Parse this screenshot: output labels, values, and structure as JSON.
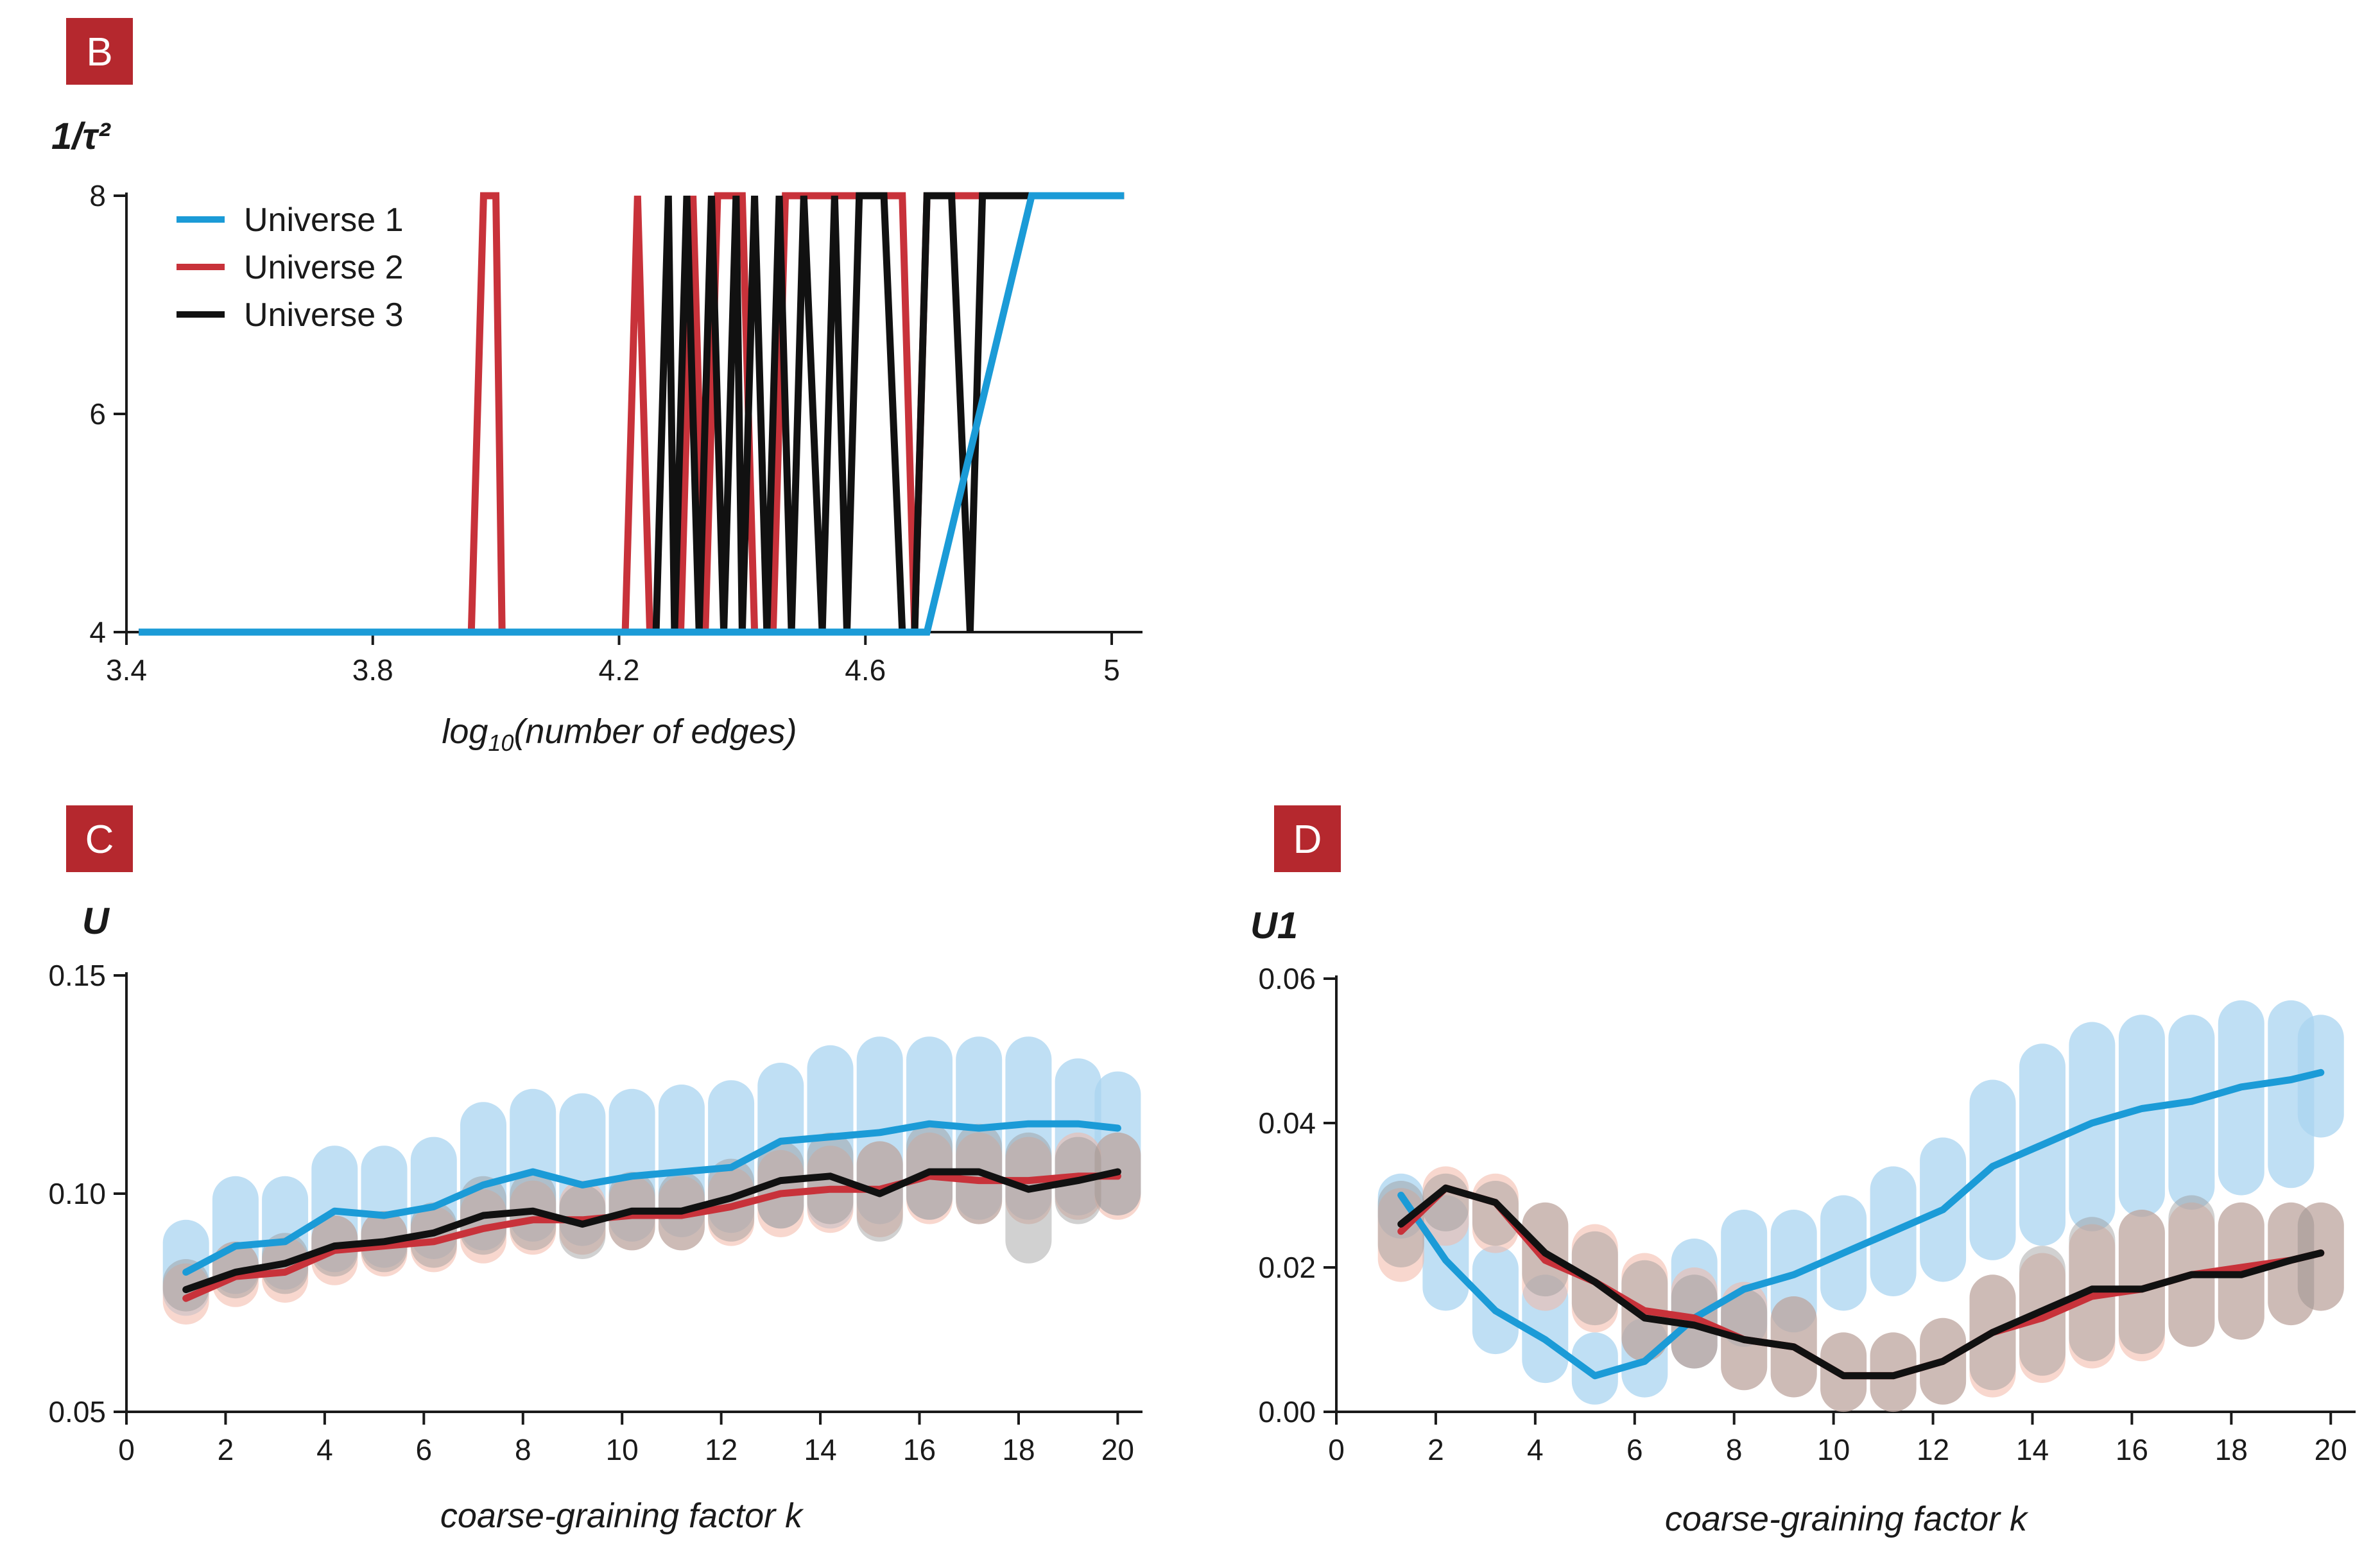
{
  "colors": {
    "universe1": "#1b9bd7",
    "universe2": "#c8323a",
    "universe3": "#111111",
    "badge": "#b5282e",
    "band_universe1": "#a9d4f0",
    "band_universe2": "#f3b7a6",
    "band_universe3": "#9a9a9a"
  },
  "chart_data": [
    {
      "type": "line",
      "panel": "B",
      "ylabel": "1/τ²",
      "xlabel_prefix": "log",
      "xlabel_sub": "10",
      "xlabel_suffix": "(number of edges)",
      "xlim": [
        3.4,
        5.05
      ],
      "ylim": [
        4,
        8
      ],
      "xticks": [
        "3.4",
        "3.8",
        "4.2",
        "4.6",
        "5"
      ],
      "yticks": [
        "4",
        "6",
        "8"
      ],
      "legend_position": "top-left",
      "series": [
        {
          "name": "Universe 1",
          "x": [
            3.42,
            4.7,
            4.87,
            5.02
          ],
          "y": [
            4,
            4,
            8,
            8
          ]
        },
        {
          "name": "Universe 2",
          "x": [
            3.42,
            3.96,
            3.98,
            4.0,
            4.01,
            4.21,
            4.23,
            4.25,
            4.3,
            4.32,
            4.34,
            4.36,
            4.4,
            4.42,
            4.45,
            4.47,
            4.52,
            4.66,
            4.68,
            4.7,
            4.75,
            5.02
          ],
          "y": [
            4,
            4,
            8,
            8,
            4,
            4,
            8,
            4,
            4,
            8,
            4,
            8,
            8,
            4,
            4,
            8,
            8,
            8,
            4,
            8,
            8,
            8
          ]
        },
        {
          "name": "Universe 3",
          "x": [
            3.42,
            4.26,
            4.28,
            4.29,
            4.31,
            4.33,
            4.35,
            4.37,
            4.39,
            4.4,
            4.42,
            4.44,
            4.46,
            4.48,
            4.5,
            4.53,
            4.55,
            4.57,
            4.59,
            4.6,
            4.63,
            4.66,
            4.68,
            4.7,
            4.72,
            4.74,
            4.77,
            4.79,
            4.82,
            4.85,
            5.02
          ],
          "y": [
            4,
            4,
            8,
            4,
            8,
            4,
            8,
            4,
            8,
            4,
            8,
            4,
            8,
            4,
            8,
            4,
            8,
            4,
            8,
            8,
            8,
            4,
            4,
            8,
            8,
            8,
            4,
            8,
            8,
            8,
            8
          ]
        }
      ]
    },
    {
      "type": "line",
      "panel": "C",
      "ylabel": "U",
      "xlabel": "coarse-graining factor k",
      "xlim": [
        0,
        20.5
      ],
      "ylim": [
        0.05,
        0.15
      ],
      "xticks": [
        "0",
        "2",
        "4",
        "6",
        "8",
        "10",
        "12",
        "14",
        "16",
        "18",
        "20"
      ],
      "yticks": [
        "0.05",
        "0.10",
        "0.15"
      ],
      "x": [
        1.2,
        2.2,
        3.2,
        4.2,
        5.2,
        6.2,
        7.2,
        8.2,
        9.2,
        10.2,
        11.2,
        12.2,
        13.2,
        14.2,
        15.2,
        16.2,
        17.2,
        18.2,
        19.2,
        20.0
      ],
      "series": [
        {
          "name": "Universe 1",
          "values": [
            0.082,
            0.088,
            0.089,
            0.096,
            0.095,
            0.097,
            0.102,
            0.105,
            0.102,
            0.104,
            0.105,
            0.106,
            0.112,
            0.113,
            0.114,
            0.116,
            0.115,
            0.116,
            0.116,
            0.115
          ],
          "band_low": [
            0.072,
            0.077,
            0.078,
            0.082,
            0.083,
            0.085,
            0.087,
            0.089,
            0.088,
            0.089,
            0.09,
            0.091,
            0.092,
            0.092,
            0.093,
            0.094,
            0.094,
            0.094,
            0.095,
            0.095
          ],
          "band_high": [
            0.094,
            0.104,
            0.104,
            0.111,
            0.111,
            0.113,
            0.121,
            0.124,
            0.123,
            0.124,
            0.125,
            0.126,
            0.13,
            0.134,
            0.136,
            0.136,
            0.136,
            0.136,
            0.131,
            0.128
          ]
        },
        {
          "name": "Universe 2",
          "values": [
            0.076,
            0.081,
            0.082,
            0.087,
            0.088,
            0.089,
            0.092,
            0.094,
            0.094,
            0.095,
            0.095,
            0.097,
            0.1,
            0.101,
            0.101,
            0.104,
            0.103,
            0.103,
            0.104,
            0.104
          ],
          "band_low": [
            0.07,
            0.074,
            0.075,
            0.079,
            0.081,
            0.082,
            0.084,
            0.086,
            0.086,
            0.087,
            0.087,
            0.088,
            0.09,
            0.091,
            0.09,
            0.093,
            0.093,
            0.093,
            0.094,
            0.094
          ],
          "band_high": [
            0.084,
            0.089,
            0.09,
            0.095,
            0.096,
            0.097,
            0.101,
            0.103,
            0.103,
            0.104,
            0.104,
            0.106,
            0.11,
            0.111,
            0.112,
            0.114,
            0.114,
            0.113,
            0.114,
            0.114
          ]
        },
        {
          "name": "Universe 3",
          "values": [
            0.078,
            0.082,
            0.084,
            0.088,
            0.089,
            0.091,
            0.095,
            0.096,
            0.093,
            0.096,
            0.096,
            0.099,
            0.103,
            0.104,
            0.1,
            0.105,
            0.105,
            0.101,
            0.103,
            0.105
          ],
          "band_low": [
            0.073,
            0.076,
            0.077,
            0.081,
            0.082,
            0.083,
            0.086,
            0.087,
            0.085,
            0.087,
            0.087,
            0.089,
            0.092,
            0.093,
            0.089,
            0.094,
            0.093,
            0.084,
            0.093,
            0.095
          ],
          "band_high": [
            0.085,
            0.089,
            0.091,
            0.095,
            0.096,
            0.098,
            0.104,
            0.105,
            0.102,
            0.105,
            0.105,
            0.108,
            0.112,
            0.114,
            0.112,
            0.116,
            0.116,
            0.114,
            0.113,
            0.114
          ]
        }
      ]
    },
    {
      "type": "line",
      "panel": "D",
      "ylabel": "U1",
      "xlabel": "coarse-graining factor k",
      "xlim": [
        0,
        20.5
      ],
      "ylim": [
        0.0,
        0.06
      ],
      "xticks": [
        "0",
        "2",
        "4",
        "6",
        "8",
        "10",
        "12",
        "14",
        "16",
        "18",
        "20"
      ],
      "yticks": [
        "0.00",
        "0.02",
        "0.04",
        "0.06"
      ],
      "x": [
        1.3,
        2.2,
        3.2,
        4.2,
        5.2,
        6.2,
        7.2,
        8.2,
        9.2,
        10.2,
        11.2,
        12.2,
        13.2,
        14.2,
        15.2,
        16.2,
        17.2,
        18.2,
        19.2,
        19.8
      ],
      "series": [
        {
          "name": "Universe 1",
          "values": [
            0.03,
            0.021,
            0.014,
            0.01,
            0.005,
            0.007,
            0.013,
            0.017,
            0.019,
            0.022,
            0.025,
            0.028,
            0.034,
            0.037,
            0.04,
            0.042,
            0.043,
            0.045,
            0.046,
            0.047
          ],
          "band_low": [
            0.024,
            0.014,
            0.008,
            0.004,
            0.001,
            0.002,
            0.006,
            0.009,
            0.011,
            0.014,
            0.016,
            0.018,
            0.021,
            0.023,
            0.025,
            0.027,
            0.028,
            0.03,
            0.031,
            0.038
          ],
          "band_high": [
            0.033,
            0.03,
            0.023,
            0.019,
            0.011,
            0.013,
            0.024,
            0.028,
            0.028,
            0.03,
            0.034,
            0.038,
            0.046,
            0.051,
            0.054,
            0.055,
            0.055,
            0.057,
            0.057,
            0.055
          ]
        },
        {
          "name": "Universe 2",
          "values": [
            0.025,
            0.031,
            0.029,
            0.021,
            0.018,
            0.014,
            0.013,
            0.01,
            0.009,
            0.005,
            0.005,
            0.007,
            0.011,
            0.013,
            0.016,
            0.017,
            0.019,
            0.02,
            0.021,
            0.022
          ],
          "band_low": [
            0.018,
            0.023,
            0.022,
            0.014,
            0.011,
            0.007,
            0.006,
            0.003,
            0.002,
            0.0,
            0.0,
            0.001,
            0.002,
            0.004,
            0.006,
            0.007,
            0.009,
            0.01,
            0.012,
            0.014
          ],
          "band_high": [
            0.031,
            0.034,
            0.033,
            0.029,
            0.026,
            0.022,
            0.02,
            0.018,
            0.016,
            0.011,
            0.011,
            0.013,
            0.019,
            0.022,
            0.026,
            0.028,
            0.029,
            0.029,
            0.029,
            0.029
          ]
        },
        {
          "name": "Universe 3",
          "values": [
            0.026,
            0.031,
            0.029,
            0.022,
            0.018,
            0.013,
            0.012,
            0.01,
            0.009,
            0.005,
            0.005,
            0.007,
            0.011,
            0.014,
            0.017,
            0.017,
            0.019,
            0.019,
            0.021,
            0.022
          ],
          "band_low": [
            0.02,
            0.025,
            0.023,
            0.016,
            0.012,
            0.007,
            0.006,
            0.003,
            0.002,
            0.0,
            0.0,
            0.001,
            0.003,
            0.005,
            0.007,
            0.008,
            0.009,
            0.01,
            0.012,
            0.014
          ],
          "band_high": [
            0.032,
            0.033,
            0.032,
            0.029,
            0.025,
            0.021,
            0.019,
            0.017,
            0.016,
            0.011,
            0.011,
            0.013,
            0.019,
            0.023,
            0.027,
            0.028,
            0.03,
            0.029,
            0.029,
            0.029
          ]
        }
      ]
    }
  ]
}
